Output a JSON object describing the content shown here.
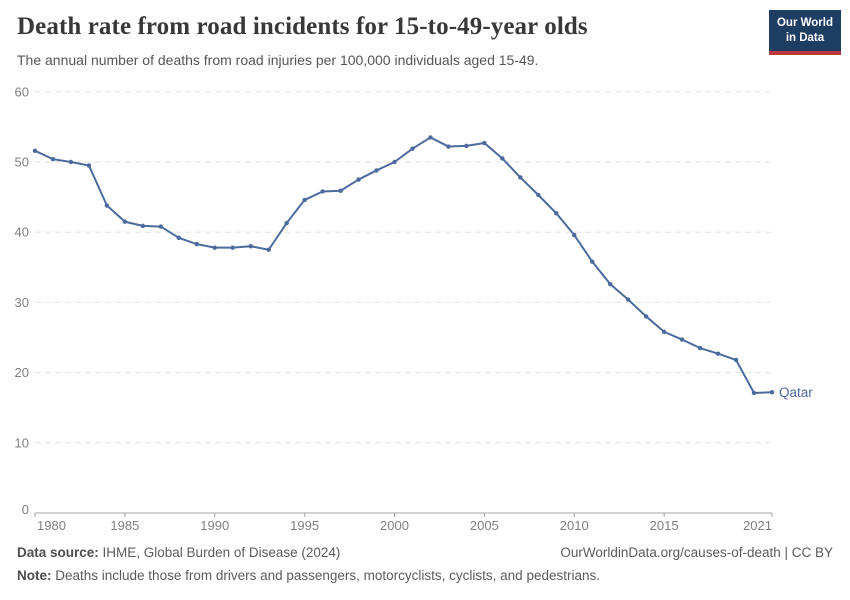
{
  "header": {
    "title": "Death rate from road incidents for 15-to-49-year olds",
    "subtitle": "The annual number of deaths from road injuries per 100,000 individuals aged 15-49.",
    "logo": {
      "line1": "Our World",
      "line2": "in Data"
    }
  },
  "chart_data": {
    "type": "line",
    "title": "Death rate from road incidents for 15-to-49-year olds",
    "xlabel": "",
    "ylabel": "",
    "x": [
      1980,
      1981,
      1982,
      1983,
      1984,
      1985,
      1986,
      1987,
      1988,
      1989,
      1990,
      1991,
      1992,
      1993,
      1994,
      1995,
      1996,
      1997,
      1998,
      1999,
      2000,
      2001,
      2002,
      2003,
      2004,
      2005,
      2006,
      2007,
      2008,
      2009,
      2010,
      2011,
      2012,
      2013,
      2014,
      2015,
      2016,
      2017,
      2018,
      2019,
      2020,
      2021
    ],
    "series": [
      {
        "name": "Qatar",
        "color": "#4c6a9d",
        "values": [
          51.6,
          50.4,
          50.0,
          49.5,
          43.8,
          41.5,
          40.9,
          40.8,
          39.2,
          38.3,
          37.8,
          37.8,
          38.0,
          37.5,
          41.3,
          44.6,
          45.8,
          45.9,
          47.5,
          48.8,
          50.0,
          51.9,
          53.5,
          52.2,
          52.3,
          52.7,
          50.5,
          47.8,
          45.3,
          42.7,
          39.6,
          35.8,
          32.6,
          30.4,
          28.0,
          25.8,
          24.7,
          23.5,
          22.7,
          21.8,
          17.1,
          17.2
        ]
      }
    ],
    "xticks": [
      1980,
      1985,
      1990,
      1995,
      2000,
      2005,
      2010,
      2015,
      2021
    ],
    "yticks": [
      0,
      10,
      20,
      30,
      40,
      50,
      60
    ],
    "xlim": [
      1980,
      2021
    ],
    "ylim": [
      0,
      60
    ],
    "grid": "horizontal-dashed",
    "legend_position": "end-of-line-label",
    "marker": "dot"
  },
  "footer": {
    "data_source_label": "Data source:",
    "data_source_text": " IHME, Global Burden of Disease (2024)",
    "link": "OurWorldinData.org/causes-of-death | CC BY",
    "note_label": "Note:",
    "note_text": " Deaths include those from drivers and passengers, motorcyclists, cyclists, and pedestrians."
  },
  "colors": {
    "line": "#4c6a9d",
    "logo_bg": "#1d3d63",
    "logo_accent": "#bd3741",
    "gridline": "#e2e2e2",
    "axis_text": "#7f7f7f",
    "title_text": "#383838",
    "body_text": "#5b5b5b"
  }
}
